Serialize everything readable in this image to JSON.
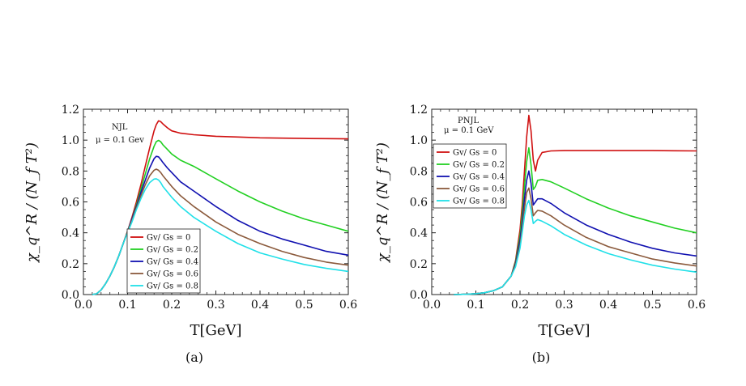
{
  "chart_data": [
    {
      "type": "line",
      "panel_caption": "(a)",
      "annotations": [
        "NJL",
        "μ = 0.1 Gev"
      ],
      "xlabel": "T[GeV]",
      "ylabel": "χ_q^R / (N_f T²)",
      "xlim": [
        0.0,
        0.6
      ],
      "ylim": [
        0.0,
        1.2
      ],
      "xticks": [
        "0.0",
        "0.1",
        "0.2",
        "0.3",
        "0.4",
        "0.5",
        "0.6"
      ],
      "yticks": [
        "0.0",
        "0.2",
        "0.4",
        "0.6",
        "0.8",
        "1.0",
        "1.2"
      ],
      "legend_position": "bottom-center",
      "series": [
        {
          "name": "Gv/ Gs = 0",
          "color": "#d01010",
          "x": [
            0.02,
            0.03,
            0.04,
            0.05,
            0.06,
            0.07,
            0.08,
            0.09,
            0.1,
            0.11,
            0.12,
            0.13,
            0.14,
            0.15,
            0.16,
            0.165,
            0.17,
            0.175,
            0.18,
            0.19,
            0.2,
            0.22,
            0.25,
            0.3,
            0.35,
            0.4,
            0.45,
            0.5,
            0.55,
            0.6
          ],
          "y": [
            0.0,
            0.005,
            0.03,
            0.07,
            0.12,
            0.18,
            0.25,
            0.33,
            0.41,
            0.5,
            0.6,
            0.71,
            0.83,
            0.95,
            1.06,
            1.1,
            1.125,
            1.12,
            1.105,
            1.08,
            1.06,
            1.045,
            1.035,
            1.025,
            1.02,
            1.015,
            1.013,
            1.011,
            1.01,
            1.008
          ]
        },
        {
          "name": "Gv/ Gs = 0.2",
          "color": "#22d022",
          "x": [
            0.02,
            0.03,
            0.04,
            0.05,
            0.06,
            0.07,
            0.08,
            0.09,
            0.1,
            0.11,
            0.12,
            0.13,
            0.14,
            0.15,
            0.16,
            0.165,
            0.17,
            0.175,
            0.18,
            0.19,
            0.2,
            0.22,
            0.25,
            0.3,
            0.35,
            0.4,
            0.45,
            0.5,
            0.55,
            0.6
          ],
          "y": [
            0.0,
            0.005,
            0.03,
            0.07,
            0.12,
            0.18,
            0.25,
            0.33,
            0.41,
            0.49,
            0.58,
            0.68,
            0.78,
            0.88,
            0.96,
            0.99,
            0.998,
            0.99,
            0.97,
            0.94,
            0.91,
            0.87,
            0.83,
            0.75,
            0.67,
            0.6,
            0.54,
            0.49,
            0.45,
            0.41
          ]
        },
        {
          "name": "Gv/ Gs = 0.4",
          "color": "#1010b0",
          "x": [
            0.02,
            0.03,
            0.04,
            0.05,
            0.06,
            0.07,
            0.08,
            0.09,
            0.1,
            0.11,
            0.12,
            0.13,
            0.14,
            0.15,
            0.16,
            0.165,
            0.17,
            0.175,
            0.18,
            0.19,
            0.2,
            0.22,
            0.25,
            0.3,
            0.35,
            0.4,
            0.45,
            0.5,
            0.55,
            0.6
          ],
          "y": [
            0.0,
            0.005,
            0.03,
            0.07,
            0.12,
            0.18,
            0.25,
            0.33,
            0.41,
            0.49,
            0.57,
            0.66,
            0.74,
            0.82,
            0.88,
            0.895,
            0.892,
            0.875,
            0.855,
            0.82,
            0.79,
            0.73,
            0.67,
            0.57,
            0.48,
            0.41,
            0.36,
            0.32,
            0.28,
            0.255
          ]
        },
        {
          "name": "Gv/ Gs = 0.6",
          "color": "#8b5a3c",
          "x": [
            0.02,
            0.03,
            0.04,
            0.05,
            0.06,
            0.07,
            0.08,
            0.09,
            0.1,
            0.11,
            0.12,
            0.13,
            0.14,
            0.15,
            0.16,
            0.165,
            0.17,
            0.175,
            0.18,
            0.19,
            0.2,
            0.22,
            0.25,
            0.3,
            0.35,
            0.4,
            0.45,
            0.5,
            0.55,
            0.6
          ],
          "y": [
            0.0,
            0.005,
            0.03,
            0.07,
            0.12,
            0.18,
            0.25,
            0.33,
            0.41,
            0.48,
            0.56,
            0.64,
            0.71,
            0.77,
            0.805,
            0.812,
            0.805,
            0.79,
            0.77,
            0.735,
            0.7,
            0.64,
            0.57,
            0.47,
            0.39,
            0.33,
            0.28,
            0.24,
            0.21,
            0.19
          ]
        },
        {
          "name": "Gv/ Gs = 0.8",
          "color": "#20e0e8",
          "x": [
            0.02,
            0.03,
            0.04,
            0.05,
            0.06,
            0.07,
            0.08,
            0.09,
            0.1,
            0.11,
            0.12,
            0.13,
            0.14,
            0.15,
            0.16,
            0.165,
            0.17,
            0.175,
            0.18,
            0.19,
            0.2,
            0.22,
            0.25,
            0.3,
            0.35,
            0.4,
            0.45,
            0.5,
            0.55,
            0.6
          ],
          "y": [
            0.0,
            0.005,
            0.03,
            0.07,
            0.12,
            0.18,
            0.25,
            0.33,
            0.4,
            0.47,
            0.55,
            0.62,
            0.68,
            0.725,
            0.748,
            0.75,
            0.742,
            0.725,
            0.7,
            0.665,
            0.63,
            0.57,
            0.5,
            0.41,
            0.33,
            0.27,
            0.23,
            0.195,
            0.17,
            0.15
          ]
        }
      ]
    },
    {
      "type": "line",
      "panel_caption": "(b)",
      "annotations": [
        "PNJL",
        "μ = 0.1 GeV"
      ],
      "xlabel": "T[GeV]",
      "ylabel": "χ_q^R / (N_f T²)",
      "xlim": [
        0.0,
        0.6
      ],
      "ylim": [
        0.0,
        1.2
      ],
      "xticks": [
        "0.0",
        "0.1",
        "0.2",
        "0.3",
        "0.4",
        "0.5",
        "0.6"
      ],
      "yticks": [
        "0.0",
        "0.2",
        "0.4",
        "0.6",
        "0.8",
        "1.0",
        "1.2"
      ],
      "legend_position": "top-left",
      "series": [
        {
          "name": "Gv/ Gs = 0",
          "color": "#d01010",
          "x": [
            0.05,
            0.08,
            0.1,
            0.12,
            0.14,
            0.16,
            0.18,
            0.19,
            0.2,
            0.205,
            0.21,
            0.215,
            0.22,
            0.225,
            0.23,
            0.235,
            0.24,
            0.25,
            0.27,
            0.3,
            0.35,
            0.4,
            0.45,
            0.5,
            0.55,
            0.6
          ],
          "y": [
            0.0,
            0.002,
            0.006,
            0.012,
            0.025,
            0.05,
            0.12,
            0.22,
            0.42,
            0.58,
            0.8,
            1.02,
            1.16,
            1.06,
            0.87,
            0.8,
            0.87,
            0.92,
            0.93,
            0.932,
            0.932,
            0.932,
            0.932,
            0.932,
            0.931,
            0.93
          ]
        },
        {
          "name": "Gv/ Gs = 0.2",
          "color": "#22d022",
          "x": [
            0.05,
            0.08,
            0.1,
            0.12,
            0.14,
            0.16,
            0.18,
            0.19,
            0.2,
            0.205,
            0.21,
            0.215,
            0.22,
            0.225,
            0.23,
            0.235,
            0.24,
            0.25,
            0.27,
            0.3,
            0.35,
            0.4,
            0.45,
            0.5,
            0.55,
            0.6
          ],
          "y": [
            0.0,
            0.002,
            0.006,
            0.012,
            0.025,
            0.05,
            0.12,
            0.21,
            0.38,
            0.52,
            0.7,
            0.86,
            0.95,
            0.84,
            0.68,
            0.7,
            0.74,
            0.745,
            0.73,
            0.69,
            0.62,
            0.56,
            0.51,
            0.47,
            0.43,
            0.4
          ]
        },
        {
          "name": "Gv/ Gs = 0.4",
          "color": "#1010b0",
          "x": [
            0.05,
            0.08,
            0.1,
            0.12,
            0.14,
            0.16,
            0.18,
            0.19,
            0.2,
            0.205,
            0.21,
            0.215,
            0.22,
            0.225,
            0.23,
            0.235,
            0.24,
            0.25,
            0.27,
            0.3,
            0.35,
            0.4,
            0.45,
            0.5,
            0.55,
            0.6
          ],
          "y": [
            0.0,
            0.002,
            0.006,
            0.012,
            0.025,
            0.05,
            0.12,
            0.2,
            0.35,
            0.47,
            0.62,
            0.74,
            0.8,
            0.72,
            0.58,
            0.6,
            0.62,
            0.62,
            0.59,
            0.53,
            0.45,
            0.39,
            0.34,
            0.3,
            0.27,
            0.25
          ]
        },
        {
          "name": "Gv/ Gs = 0.6",
          "color": "#8b5a3c",
          "x": [
            0.05,
            0.08,
            0.1,
            0.12,
            0.14,
            0.16,
            0.18,
            0.19,
            0.2,
            0.205,
            0.21,
            0.215,
            0.22,
            0.225,
            0.23,
            0.235,
            0.24,
            0.25,
            0.27,
            0.3,
            0.35,
            0.4,
            0.45,
            0.5,
            0.55,
            0.6
          ],
          "y": [
            0.0,
            0.002,
            0.006,
            0.012,
            0.025,
            0.05,
            0.12,
            0.19,
            0.32,
            0.43,
            0.56,
            0.66,
            0.69,
            0.62,
            0.51,
            0.53,
            0.545,
            0.54,
            0.51,
            0.45,
            0.37,
            0.31,
            0.27,
            0.23,
            0.205,
            0.185
          ]
        },
        {
          "name": "Gv/ Gs = 0.8",
          "color": "#20e0e8",
          "x": [
            0.05,
            0.08,
            0.1,
            0.12,
            0.14,
            0.16,
            0.18,
            0.19,
            0.2,
            0.205,
            0.21,
            0.215,
            0.22,
            0.225,
            0.23,
            0.235,
            0.24,
            0.25,
            0.27,
            0.3,
            0.35,
            0.4,
            0.45,
            0.5,
            0.55,
            0.6
          ],
          "y": [
            0.0,
            0.002,
            0.006,
            0.012,
            0.025,
            0.05,
            0.12,
            0.18,
            0.3,
            0.4,
            0.51,
            0.58,
            0.61,
            0.55,
            0.46,
            0.475,
            0.485,
            0.475,
            0.445,
            0.39,
            0.32,
            0.265,
            0.225,
            0.19,
            0.165,
            0.145
          ]
        }
      ]
    }
  ]
}
